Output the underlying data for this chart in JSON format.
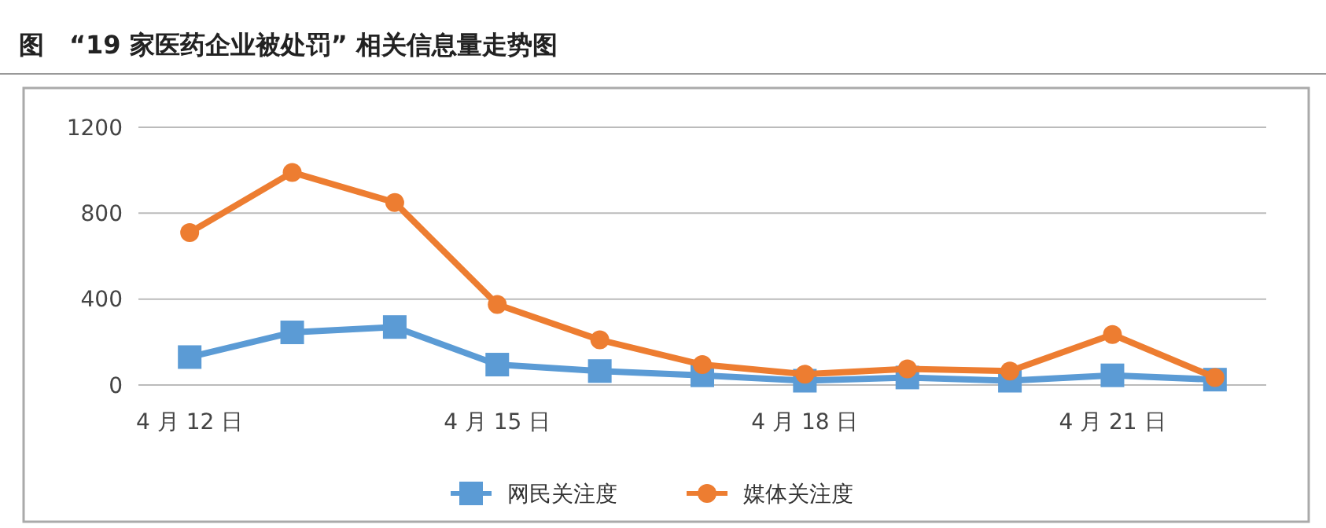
{
  "chart_data": {
    "type": "line",
    "title": "图　“19 家医药企业被处罚” 相关信息量走势图",
    "categories": [
      "4 月 12 日",
      null,
      null,
      "4 月 15 日",
      null,
      null,
      "4 月 18 日",
      null,
      null,
      "4 月 21 日",
      null
    ],
    "series": [
      {
        "name": "网民关注度",
        "color": "#5b9bd5",
        "marker": "square",
        "values": [
          130,
          245,
          270,
          95,
          65,
          45,
          20,
          35,
          20,
          45,
          25
        ]
      },
      {
        "name": "媒体关注度",
        "color": "#ed7d31",
        "marker": "circle",
        "values": [
          710,
          990,
          850,
          375,
          210,
          95,
          50,
          75,
          65,
          235,
          35
        ]
      }
    ],
    "ylim": [
      0,
      1200
    ],
    "yticks": [
      0,
      400,
      800,
      1200
    ],
    "grid": "y",
    "legend": "bottom",
    "line_style": "solid"
  }
}
